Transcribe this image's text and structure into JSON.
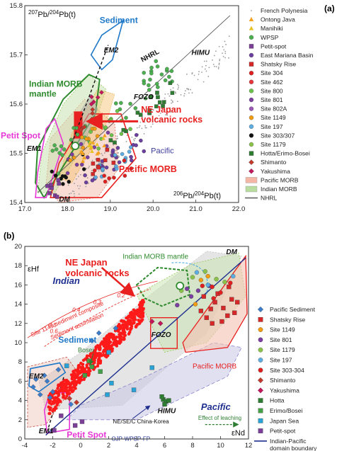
{
  "chart_data": [
    {
      "panel": "(a)",
      "type": "scatter",
      "ylabel_pre": "207",
      "ylabel_mid": "Pb/",
      "ylabel_sup2": "204",
      "ylabel_post": "Pb(t)",
      "xlabel_pre": "206",
      "xlabel_mid": "Pb/",
      "xlabel_sup2": "204",
      "xlabel_post": "Pb(t)",
      "xlim": [
        17.0,
        22.0
      ],
      "ylim": [
        15.4,
        15.8
      ],
      "xticks": [
        "17.0",
        "18.0",
        "19.0",
        "20.0",
        "21.0",
        "22.0"
      ],
      "yticks": [
        "15.4",
        "15.5",
        "15.6",
        "15.7",
        "15.8"
      ],
      "annotations": {
        "sediment": "Sediment",
        "em2": "EM2",
        "nhrl": "NHRL",
        "himu": "HIMU",
        "indian_morb_mantle": "Indian MORB\nmantle",
        "fozo": "FOZO",
        "ne_japan": "NE Japan\nvolcanic rocks",
        "petit_spot": "Petit Spot",
        "em1": "EM1",
        "pacific": "Pacific",
        "pacific_morb": "Pacific MORB",
        "dm": "DM"
      },
      "legend": [
        {
          "label": "French Polynesia",
          "color": "#9a9a9a",
          "marker": "dot"
        },
        {
          "label": "Ontong Java",
          "color": "#f4a11f",
          "marker": "triangle"
        },
        {
          "label": "Manihiki",
          "color": "#e6c227",
          "marker": "triangle"
        },
        {
          "label": "WPSP",
          "color": "#4caf50",
          "marker": "circle"
        },
        {
          "label": "Petit-spot",
          "color": "#7b3f98",
          "marker": "square"
        },
        {
          "label": "East Mariana Basin",
          "color": "#6b3fa0",
          "marker": "circle"
        },
        {
          "label": "Shatsky Rise",
          "color": "#d62828",
          "marker": "square"
        },
        {
          "label": "Site 304",
          "color": "#e02020",
          "marker": "circle"
        },
        {
          "label": "Site 462",
          "color": "#e8363a",
          "marker": "circle"
        },
        {
          "label": "Site 800",
          "color": "#6cc24a",
          "marker": "circle"
        },
        {
          "label": "Site 801",
          "color": "#7a3fa0",
          "marker": "circle"
        },
        {
          "label": "Site 802A",
          "color": "#9b59b6",
          "marker": "circle"
        },
        {
          "label": "Site 1149",
          "color": "#f39c12",
          "marker": "circle"
        },
        {
          "label": "Site 197",
          "color": "#5dade2",
          "marker": "circle"
        },
        {
          "label": "Site 303/307",
          "color": "#111111",
          "marker": "circle"
        },
        {
          "label": "Site 1179",
          "color": "#8bc34a",
          "marker": "circle"
        },
        {
          "label": "Hotta/Erimo-Bosei",
          "color": "#2e7d32",
          "marker": "square"
        },
        {
          "label": "Shimanto",
          "color": "#c0392b",
          "marker": "diamond"
        },
        {
          "label": "Yakushima",
          "color": "#c2185b",
          "marker": "diamond"
        },
        {
          "label": "Pacific MORB",
          "color": "#f4b7a5",
          "marker": "field"
        },
        {
          "label": "Indian MORB",
          "color": "#b9dca0",
          "marker": "field"
        },
        {
          "label": "NHRL",
          "color": "#666666",
          "marker": "line"
        }
      ]
    },
    {
      "panel": "(b)",
      "type": "scatter",
      "ylabel": "εHf",
      "xlabel": "εNd",
      "xlim": [
        -4,
        12
      ],
      "ylim": [
        0,
        20
      ],
      "xticks": [
        "-4",
        "-2",
        "0",
        "2",
        "4",
        "6",
        "8",
        "10",
        "12"
      ],
      "yticks": [
        "0",
        "2",
        "4",
        "6",
        "8",
        "10",
        "12",
        "14",
        "16",
        "18",
        "20"
      ],
      "annotations": {
        "ne_japan": "NE Japan\nvolcanic rocks",
        "indian_morb_mantle": "Indian MORB mantle",
        "dm": "DM",
        "indian": "Indian",
        "sed_composite": "Site 1149 sediment composite",
        "sed_assim": "Sediment assimilation",
        "sediment": "Sediment",
        "bosei": "Bosei",
        "em2": "EM2",
        "em1": "EM1",
        "petit_spot": "Petit Spot",
        "fozo": "FOZO",
        "pacific_morb": "Pacific MORB",
        "himu": "HIMU",
        "pacific": "Pacific",
        "china_korea": "NE/SE/C China-Korea",
        "effect_leaching": "Effect of leaching",
        "ojp": "OJP-WPSP-FP",
        "fracs": [
          "0.2",
          "0.3",
          "0.4",
          "0.5",
          "0.6"
        ]
      },
      "legend": [
        {
          "label": "Pacific Sediment",
          "color": "#3d7cc9",
          "marker": "diamond"
        },
        {
          "label": "Shatsky Rise",
          "color": "#d62828",
          "marker": "square"
        },
        {
          "label": "Site 1149",
          "color": "#f39c12",
          "marker": "circle"
        },
        {
          "label": "Site 801",
          "color": "#7a3fa0",
          "marker": "circle"
        },
        {
          "label": "Site 1179",
          "color": "#8bc34a",
          "marker": "circle"
        },
        {
          "label": "Site 197",
          "color": "#5dade2",
          "marker": "circle"
        },
        {
          "label": "Site 303-304",
          "color": "#e02020",
          "marker": "circle"
        },
        {
          "label": "Shimanto",
          "color": "#c0392b",
          "marker": "diamond"
        },
        {
          "label": "Yakushima",
          "color": "#c2185b",
          "marker": "diamond"
        },
        {
          "label": "Hotta",
          "color": "#2e7d32",
          "marker": "square"
        },
        {
          "label": "Erimo/Bosei",
          "color": "#43a047",
          "marker": "square"
        },
        {
          "label": "Japan Sea",
          "color": "#29a3d6",
          "marker": "square"
        },
        {
          "label": "Petit-spot",
          "color": "#7b3f98",
          "marker": "square"
        },
        {
          "label": "Indian-Pacific\ndomain boundary",
          "color": "#1f2f8f",
          "marker": "line"
        }
      ]
    }
  ]
}
